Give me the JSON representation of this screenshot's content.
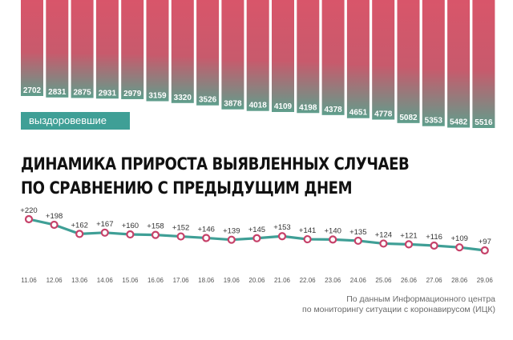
{
  "chart_data": [
    {
      "type": "bar",
      "categories": [
        "11.06",
        "12.06",
        "13.06",
        "14.06",
        "15.06",
        "16.06",
        "17.06",
        "18.06",
        "19.06",
        "20.06",
        "21.06",
        "22.06",
        "23.06",
        "24.06",
        "25.06",
        "26.06",
        "27.06",
        "28.06",
        "29.06"
      ],
      "values": [
        2702,
        2831,
        2875,
        2931,
        2979,
        3159,
        3320,
        3526,
        3878,
        4018,
        4109,
        4198,
        4378,
        4651,
        4778,
        5082,
        5353,
        5482,
        5516
      ],
      "legend": "выздоровевшие",
      "colors": {
        "top": "#d9556a",
        "bottom": "#5f9e8c"
      }
    },
    {
      "type": "line",
      "title": "ДИНАМИКА ПРИРОСТА ВЫЯВЛЕННЫХ СЛУЧАЕВ ПО СРАВНЕНИЮ С ПРЕДЫДУЩИМ ДНЕМ",
      "x": [
        "11.06",
        "12.06",
        "13.06",
        "14.06",
        "15.06",
        "16.06",
        "17.06",
        "18.06",
        "19.06",
        "20.06",
        "21.06",
        "22.06",
        "23.06",
        "24.06",
        "25.06",
        "26.06",
        "27.06",
        "28.06",
        "29.06"
      ],
      "values": [
        220,
        198,
        162,
        167,
        160,
        158,
        152,
        146,
        139,
        145,
        153,
        141,
        140,
        135,
        124,
        121,
        116,
        109,
        97
      ],
      "labels": [
        "+220",
        "+198",
        "+162",
        "+167",
        "+160",
        "+158",
        "+152",
        "+146",
        "+139",
        "+145",
        "+153",
        "+141",
        "+140",
        "+135",
        "+124",
        "+121",
        "+116",
        "+109",
        "+97"
      ],
      "colors": {
        "line": "#3f9f96",
        "marker": "#c6426a"
      }
    }
  ],
  "headline": {
    "line1": "Динамика прироста выявленных случаев",
    "line2": "по сравнению с предыдущим днем"
  },
  "source": {
    "line1": "По данным Информационного центра",
    "line2": "по мониторингу ситуации с коронавирусом (ИЦК)"
  }
}
